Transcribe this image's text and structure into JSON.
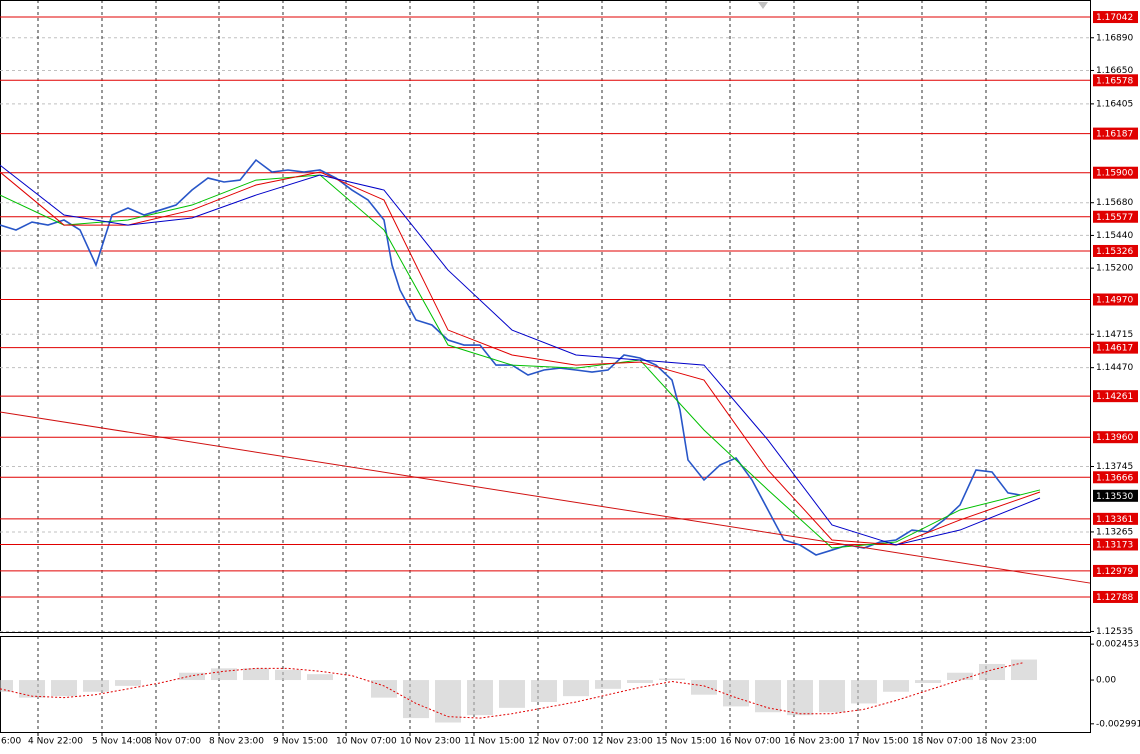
{
  "chart_data": [
    {
      "type": "line",
      "xlim": [
        0,
        272.5
      ],
      "ylim": [
        1.12531,
        1.17167
      ],
      "xticks": [
        {
          "value": -1,
          "label": "6:00"
        },
        {
          "value": 9.5,
          "label": "4 Nov 22:00"
        },
        {
          "value": 25.5,
          "label": "5 Nov 14:00"
        },
        {
          "value": 39,
          "label": "8 Nov 07:00"
        },
        {
          "value": 54.75,
          "label": "8 Nov 23:00"
        },
        {
          "value": 70.75,
          "label": "9 Nov 15:00"
        },
        {
          "value": 86.5,
          "label": "10 Nov 07:00"
        },
        {
          "value": 102.5,
          "label": "10 Nov 23:00"
        },
        {
          "value": 118.5,
          "label": "11 Nov 15:00"
        },
        {
          "value": 134.5,
          "label": "12 Nov 07:00"
        },
        {
          "value": 150.5,
          "label": "12 Nov 23:00"
        },
        {
          "value": 166.5,
          "label": "15 Nov 15:00"
        },
        {
          "value": 182.5,
          "label": "16 Nov 07:00"
        },
        {
          "value": 198.5,
          "label": "16 Nov 23:00"
        },
        {
          "value": 214.5,
          "label": "17 Nov 15:00"
        },
        {
          "value": 230.5,
          "label": "18 Nov 07:00"
        },
        {
          "value": 246.5,
          "label": "18 Nov 23:00"
        }
      ],
      "yticks": [
        {
          "value": 1.1689,
          "label": "1.16890"
        },
        {
          "value": 1.1665,
          "label": "1.16650"
        },
        1.16405,
        {
          "value": 1.1568,
          "label": "1.15680"
        },
        {
          "value": 1.1544,
          "label": "1.15440"
        },
        {
          "value": 1.152,
          "label": "1.15200"
        },
        1.14715,
        {
          "value": 1.1447,
          "label": "1.14470"
        },
        1.13745,
        1.13265,
        1.12535
      ],
      "grid": true,
      "levels": {
        "color": "#e00000",
        "values": [
          1.17042,
          1.16578,
          1.16187,
          1.159,
          1.15577,
          1.15326,
          1.1497,
          1.14617,
          1.14261,
          1.1396,
          1.13666,
          1.13361,
          1.13173,
          1.12979,
          1.12788
        ],
        "value_labels": [
          "1.17042",
          "1.16578",
          "1.16187",
          "1.15900",
          "1.15577",
          "1.15326",
          "1.14970",
          "1.14617",
          "1.14261",
          "1.13960",
          "1.13666",
          "1.13361",
          "1.13173",
          "1.12979",
          "1.12788"
        ]
      },
      "last_price": {
        "value": 1.1353,
        "label": "1.13530"
      },
      "series": [
        {
          "color": "#2856c8",
          "x": [
            0,
            4,
            8,
            12,
            16,
            20,
            24,
            28,
            32,
            36,
            40,
            44,
            48,
            52,
            56,
            60,
            64,
            68,
            72,
            76,
            80,
            84,
            88,
            92,
            96,
            98,
            100,
            104,
            108,
            112,
            116,
            120,
            124,
            128,
            132,
            136,
            140,
            144,
            148,
            152,
            156,
            160,
            164,
            168,
            170,
            172,
            176,
            180,
            184,
            188,
            192,
            196,
            200,
            204,
            208,
            212,
            216,
            220,
            224,
            228,
            232,
            236,
            240,
            244,
            248,
            252,
            255
          ],
          "values": [
            1.15516,
            1.1548,
            1.15538,
            1.15516,
            1.15553,
            1.1548,
            1.15223,
            1.1559,
            1.15641,
            1.1559,
            1.15626,
            1.15663,
            1.15773,
            1.15861,
            1.15832,
            1.15846,
            1.15993,
            1.15905,
            1.1592,
            1.15905,
            1.1592,
            1.15861,
            1.15773,
            1.157,
            1.15553,
            1.15223,
            1.1504,
            1.1482,
            1.14783,
            1.14673,
            1.14636,
            1.14636,
            1.14489,
            1.14489,
            1.14416,
            1.14453,
            1.14467,
            1.14453,
            1.14438,
            1.14453,
            1.14563,
            1.14541,
            1.14489,
            1.14379,
            1.14159,
            1.13793,
            1.13646,
            1.13756,
            1.13807,
            1.13646,
            1.13426,
            1.13206,
            1.13169,
            1.13096,
            1.13132,
            1.13169,
            1.13147,
            1.13191,
            1.13206,
            1.13279,
            1.13265,
            1.13353,
            1.13463,
            1.13719,
            1.13705,
            1.13551,
            1.13536
          ]
        },
        {
          "color": "#00c000",
          "x": [
            0,
            16,
            32,
            48,
            64,
            80,
            96,
            112,
            128,
            144,
            160,
            176,
            192,
            208,
            224,
            240,
            260
          ],
          "values": [
            1.15736,
            1.15516,
            1.15553,
            1.15663,
            1.15846,
            1.15883,
            1.1548,
            1.14636,
            1.14489,
            1.14467,
            1.14526,
            1.14013,
            1.13573,
            1.13147,
            1.13191,
            1.13426,
            1.13573
          ]
        },
        {
          "color": "#e00000",
          "x": [
            0,
            16,
            32,
            48,
            64,
            80,
            96,
            112,
            128,
            144,
            160,
            176,
            192,
            208,
            224,
            240,
            260
          ],
          "values": [
            1.15905,
            1.15516,
            1.15516,
            1.15626,
            1.1581,
            1.15905,
            1.157,
            1.14746,
            1.14563,
            1.14489,
            1.14511,
            1.14379,
            1.13719,
            1.13206,
            1.13169,
            1.13353,
            1.13558
          ]
        },
        {
          "color": "#0000c8",
          "x": [
            0,
            16,
            32,
            48,
            64,
            80,
            96,
            112,
            128,
            144,
            160,
            176,
            192,
            208,
            224,
            240,
            260
          ],
          "values": [
            1.15956,
            1.1559,
            1.15516,
            1.15568,
            1.15736,
            1.15883,
            1.15773,
            1.15186,
            1.14746,
            1.14563,
            1.14526,
            1.14489,
            1.13939,
            1.13316,
            1.13169,
            1.13279,
            1.13514
          ]
        },
        {
          "color": "#d01010",
          "x": [
            0,
            272.5
          ],
          "values": [
            1.14145,
            1.1289
          ]
        }
      ]
    },
    {
      "type": "bar",
      "xlim": [
        0,
        272.5
      ],
      "ylim": [
        -0.00355,
        0.00301
      ],
      "yticks": [
        0.002453,
        {
          "value": 0,
          "label": "0.00"
        },
        -0.002991
      ],
      "x": [
        0,
        8,
        16,
        24,
        32,
        40,
        48,
        56,
        64,
        72,
        80,
        88,
        96,
        104,
        112,
        120,
        128,
        136,
        144,
        152,
        160,
        168,
        176,
        184,
        192,
        200,
        208,
        216,
        224,
        232,
        240,
        248,
        256
      ],
      "series": [
        {
          "color": "#c8c8c8",
          "values": [
            -0.0008,
            -0.0012,
            -0.0011,
            -0.0008,
            -0.0004,
            0,
            0.0005,
            0.0008,
            0.0008,
            0.0007,
            0.0004,
            0,
            -0.0012,
            -0.0026,
            -0.0029,
            -0.0024,
            -0.0019,
            -0.0015,
            -0.0011,
            -0.0006,
            -0.0002,
            0.0001,
            -0.001,
            -0.0018,
            -0.0022,
            -0.0024,
            -0.0022,
            -0.0016,
            -0.0008,
            -0.0002,
            0.0005,
            0.0011,
            0.0014
          ]
        },
        {
          "color": "#e00000",
          "values": [
            -0.0006,
            -0.0011,
            -0.0012,
            -0.001,
            -0.0006,
            -0.0002,
            0.0003,
            0.0006,
            0.0008,
            0.0008,
            0.0006,
            0.0003,
            -0.0004,
            -0.0016,
            -0.0025,
            -0.0026,
            -0.0023,
            -0.0019,
            -0.0015,
            -0.001,
            -0.0005,
            -0.0001,
            -0.0004,
            -0.0012,
            -0.0019,
            -0.0023,
            -0.0023,
            -0.002,
            -0.0014,
            -0.0007,
            0,
            0.0007,
            0.0012
          ]
        }
      ]
    }
  ]
}
